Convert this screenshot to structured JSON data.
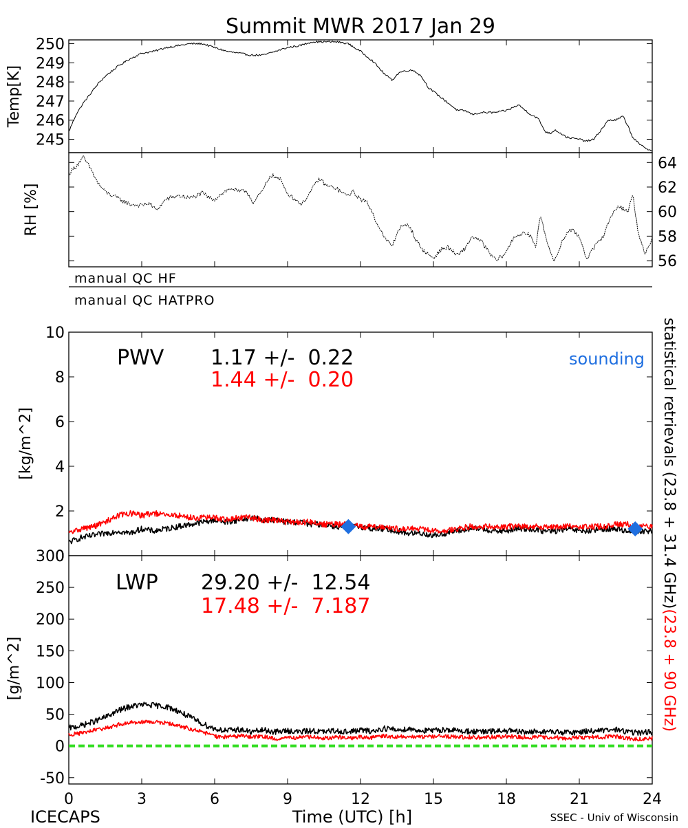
{
  "figure": {
    "title": "Summit MWR 2017 Jan 29",
    "footer_left": "ICECAPS",
    "footer_center": "Time (UTC) [h]",
    "footer_right": "SSEC - Univ of Wisconsin"
  },
  "qc": {
    "hf_label": "manual QC HF",
    "hatpro_label": "manual QC HATPRO"
  },
  "pwv": {
    "label": "PWV",
    "black_stat": "1.17 +/-  0.22",
    "red_stat": "1.44 +/-  0.20",
    "sounding_label": "sounding"
  },
  "lwp": {
    "label": "LWP",
    "black_stat": "29.20 +/-  12.54",
    "red_stat": "17.48 +/-  7.187"
  },
  "right_text": {
    "part_black": "statistical retrievals (23.8 + 31.4 GHz)",
    "part_red": "(23.8 + 90 GHz)"
  },
  "colors": {
    "black_series": "#000000",
    "red_series": "#ff0000",
    "sounding": "#1f6fe0",
    "zero_line": "#33dd22"
  },
  "chart_data": [
    {
      "id": "temp",
      "type": "line",
      "ylabel": "Temp[K]",
      "xlim": [
        0,
        24
      ],
      "ylim": [
        244.3,
        250.2
      ],
      "yticks": [
        245,
        246,
        247,
        248,
        249,
        250
      ],
      "y_axis_side": "left",
      "series": [
        {
          "color": "#000000",
          "x": [
            0,
            0.3,
            0.6,
            0.9,
            1.2,
            1.5,
            2,
            2.5,
            3,
            3.5,
            4,
            4.5,
            5,
            5.5,
            6,
            6.5,
            7,
            7.5,
            8,
            8.5,
            9,
            9.5,
            10,
            10.5,
            11,
            11.5,
            12,
            12.5,
            13,
            13.3,
            13.6,
            13.9,
            14.2,
            14.5,
            14.8,
            15,
            15.5,
            16,
            16.3,
            16.6,
            17,
            17.5,
            18,
            18.5,
            19,
            19.3,
            19.6,
            19.8,
            20,
            20.5,
            21,
            21.3,
            21.6,
            21.9,
            22.2,
            22.5,
            22.8,
            23,
            23.2,
            23.5,
            23.8,
            24
          ],
          "y": [
            245.4,
            246.3,
            246.9,
            247.4,
            247.9,
            248.3,
            248.8,
            249.2,
            249.5,
            249.6,
            249.8,
            249.9,
            250.0,
            250.0,
            249.8,
            249.6,
            249.5,
            249.4,
            249.4,
            249.6,
            249.8,
            249.9,
            250.1,
            250.1,
            250.1,
            250.0,
            249.6,
            249.1,
            248.4,
            248.1,
            248.5,
            248.6,
            248.6,
            248.3,
            247.7,
            247.5,
            247.0,
            246.5,
            246.5,
            246.3,
            246.4,
            246.4,
            246.5,
            246.8,
            246.3,
            246.1,
            245.4,
            245.3,
            245.5,
            245.1,
            245.0,
            244.9,
            245.0,
            245.5,
            246.0,
            246.0,
            246.2,
            245.7,
            245.1,
            244.7,
            244.5,
            244.4
          ]
        }
      ]
    },
    {
      "id": "rh",
      "type": "line",
      "ylabel": "RH [%]",
      "xlim": [
        0,
        24
      ],
      "ylim": [
        55.5,
        64.8
      ],
      "yticks": [
        56,
        58,
        60,
        62,
        64
      ],
      "y_axis_side": "right",
      "series": [
        {
          "color": "#000000",
          "x": [
            0,
            0.3,
            0.6,
            0.9,
            1.2,
            1.5,
            2,
            2.5,
            3,
            3.3,
            3.6,
            4,
            4.5,
            5,
            5.5,
            5.8,
            6,
            6.3,
            6.7,
            7,
            7.3,
            7.6,
            8,
            8.3,
            8.7,
            9,
            9.3,
            9.6,
            10,
            10.3,
            10.6,
            11,
            11.4,
            11.7,
            12,
            12.3,
            12.6,
            13,
            13.3,
            13.6,
            14,
            14.3,
            14.6,
            15,
            15.3,
            15.6,
            16,
            16.3,
            16.6,
            17,
            17.3,
            17.6,
            18,
            18.3,
            18.6,
            19,
            19.2,
            19.4,
            19.6,
            19.8,
            20,
            20.3,
            20.6,
            21,
            21.3,
            21.6,
            22,
            22.3,
            22.6,
            23,
            23.2,
            23.4,
            23.7,
            24
          ],
          "y": [
            63.1,
            63.7,
            64.4,
            63.5,
            62.3,
            61.6,
            61.1,
            60.6,
            60.5,
            60.7,
            60.1,
            61.0,
            61.3,
            61.1,
            61.5,
            61.1,
            61.0,
            61.5,
            61.9,
            61.6,
            61.7,
            60.7,
            61.8,
            63.0,
            62.6,
            61.5,
            61.0,
            60.6,
            61.8,
            62.7,
            62.1,
            61.9,
            61.3,
            61.6,
            61.0,
            60.7,
            59.4,
            57.8,
            57.2,
            58.7,
            58.9,
            57.6,
            56.8,
            56.2,
            56.9,
            57.1,
            56.4,
            57.0,
            58.0,
            57.5,
            56.6,
            56.0,
            56.7,
            57.9,
            58.2,
            58.1,
            57.0,
            59.8,
            58.2,
            56.6,
            56.0,
            57.6,
            58.6,
            58.0,
            56.2,
            57.0,
            58.1,
            59.6,
            60.5,
            60.0,
            61.4,
            58.6,
            56.4,
            57.9
          ]
        }
      ]
    },
    {
      "id": "pwv",
      "type": "line",
      "ylabel": "[kg/m^2]",
      "xlim": [
        0,
        24
      ],
      "ylim": [
        0,
        10
      ],
      "yticks": [
        0,
        2,
        4,
        6,
        8,
        10
      ],
      "y_axis_side": "left",
      "series": [
        {
          "color": "#000000",
          "x": [
            0,
            0.5,
            1,
            1.5,
            2,
            2.5,
            3,
            3.5,
            4,
            4.5,
            5,
            5.5,
            6,
            6.5,
            7,
            7.5,
            8,
            8.5,
            9,
            9.5,
            10,
            10.5,
            11,
            11.5,
            12,
            12.5,
            13,
            13.5,
            14,
            14.5,
            15,
            15.5,
            16,
            16.5,
            17,
            17.5,
            18,
            18.5,
            19,
            19.5,
            20,
            20.5,
            21,
            21.5,
            22,
            22.5,
            23,
            23.5,
            24
          ],
          "y": [
            0.6,
            0.8,
            0.9,
            1.0,
            1.1,
            1.0,
            1.2,
            1.1,
            1.2,
            1.3,
            1.4,
            1.5,
            1.6,
            1.5,
            1.6,
            1.7,
            1.6,
            1.6,
            1.5,
            1.5,
            1.4,
            1.4,
            1.3,
            1.3,
            1.3,
            1.2,
            1.2,
            1.1,
            1.0,
            1.0,
            0.9,
            1.0,
            1.1,
            1.2,
            1.2,
            1.1,
            1.1,
            1.2,
            1.2,
            1.1,
            1.1,
            1.2,
            1.1,
            1.1,
            1.2,
            1.2,
            1.1,
            1.1,
            1.1
          ]
        },
        {
          "color": "#ff0000",
          "x": [
            0,
            0.5,
            1,
            1.5,
            2,
            2.5,
            3,
            3.5,
            4,
            4.5,
            5,
            5.5,
            6,
            6.5,
            7,
            7.5,
            8,
            8.5,
            9,
            9.5,
            10,
            10.5,
            11,
            11.5,
            12,
            12.5,
            13,
            13.5,
            14,
            14.5,
            15,
            15.5,
            16,
            16.5,
            17,
            17.5,
            18,
            18.5,
            19,
            19.5,
            20,
            20.5,
            21,
            21.5,
            22,
            22.5,
            23,
            23.5,
            24
          ],
          "y": [
            1.0,
            1.2,
            1.3,
            1.5,
            1.8,
            1.9,
            1.8,
            1.9,
            1.8,
            1.8,
            1.7,
            1.7,
            1.7,
            1.6,
            1.7,
            1.7,
            1.6,
            1.6,
            1.5,
            1.5,
            1.5,
            1.4,
            1.4,
            1.4,
            1.3,
            1.3,
            1.3,
            1.2,
            1.2,
            1.2,
            1.1,
            1.1,
            1.2,
            1.3,
            1.3,
            1.3,
            1.3,
            1.3,
            1.3,
            1.3,
            1.3,
            1.3,
            1.3,
            1.3,
            1.3,
            1.4,
            1.4,
            1.3,
            1.3
          ]
        },
        {
          "color": "#1f6fe0",
          "kind": "markers",
          "x": [
            11.5,
            23.3
          ],
          "y": [
            1.3,
            1.2
          ]
        }
      ]
    },
    {
      "id": "lwp",
      "type": "line",
      "ylabel": "[g/m^2]",
      "xlabel": "Time (UTC) [h]",
      "xlim": [
        0,
        24
      ],
      "xticks": [
        0,
        3,
        6,
        9,
        12,
        15,
        18,
        21,
        24
      ],
      "ylim": [
        -60,
        300
      ],
      "yticks": [
        -50,
        0,
        50,
        100,
        150,
        200,
        250,
        300
      ],
      "y_axis_side": "left",
      "series": [
        {
          "color": "#000000",
          "x": [
            0,
            0.5,
            1,
            1.5,
            2,
            2.5,
            3,
            3.5,
            4,
            4.5,
            5,
            5.5,
            6,
            6.5,
            7,
            7.5,
            8,
            8.5,
            9,
            9.5,
            10,
            10.5,
            11,
            11.5,
            12,
            12.5,
            13,
            13.5,
            14,
            14.5,
            15,
            15.5,
            16,
            16.5,
            17,
            17.5,
            18,
            18.5,
            19,
            19.5,
            20,
            20.5,
            21,
            21.5,
            22,
            22.5,
            23,
            23.5,
            24
          ],
          "y": [
            28,
            32,
            38,
            45,
            55,
            62,
            65,
            64,
            62,
            55,
            45,
            35,
            27,
            24,
            26,
            22,
            25,
            22,
            24,
            22,
            24,
            22,
            24,
            22,
            25,
            23,
            28,
            25,
            27,
            24,
            24,
            26,
            24,
            23,
            22,
            23,
            24,
            22,
            22,
            23,
            22,
            21,
            22,
            24,
            24,
            26,
            22,
            21,
            22
          ]
        },
        {
          "color": "#ff0000",
          "x": [
            0,
            0.5,
            1,
            1.5,
            2,
            2.5,
            3,
            3.5,
            4,
            4.5,
            5,
            5.5,
            6,
            6.5,
            7,
            7.5,
            8,
            8.5,
            9,
            9.5,
            10,
            10.5,
            11,
            11.5,
            12,
            12.5,
            13,
            13.5,
            14,
            14.5,
            15,
            15.5,
            16,
            16.5,
            17,
            17.5,
            18,
            18.5,
            19,
            19.5,
            20,
            20.5,
            21,
            21.5,
            22,
            22.5,
            23,
            23.5,
            24
          ],
          "y": [
            18,
            20,
            24,
            28,
            33,
            37,
            38,
            38,
            36,
            32,
            27,
            22,
            15,
            14,
            16,
            14,
            15,
            11,
            13,
            13,
            14,
            12,
            14,
            12,
            14,
            13,
            16,
            14,
            15,
            14,
            15,
            15,
            14,
            14,
            13,
            14,
            15,
            14,
            13,
            14,
            13,
            12,
            13,
            14,
            14,
            15,
            12,
            11,
            12
          ]
        },
        {
          "color": "#33dd22",
          "kind": "dashed",
          "x": [
            0,
            24
          ],
          "y": [
            0,
            0
          ]
        }
      ]
    }
  ]
}
